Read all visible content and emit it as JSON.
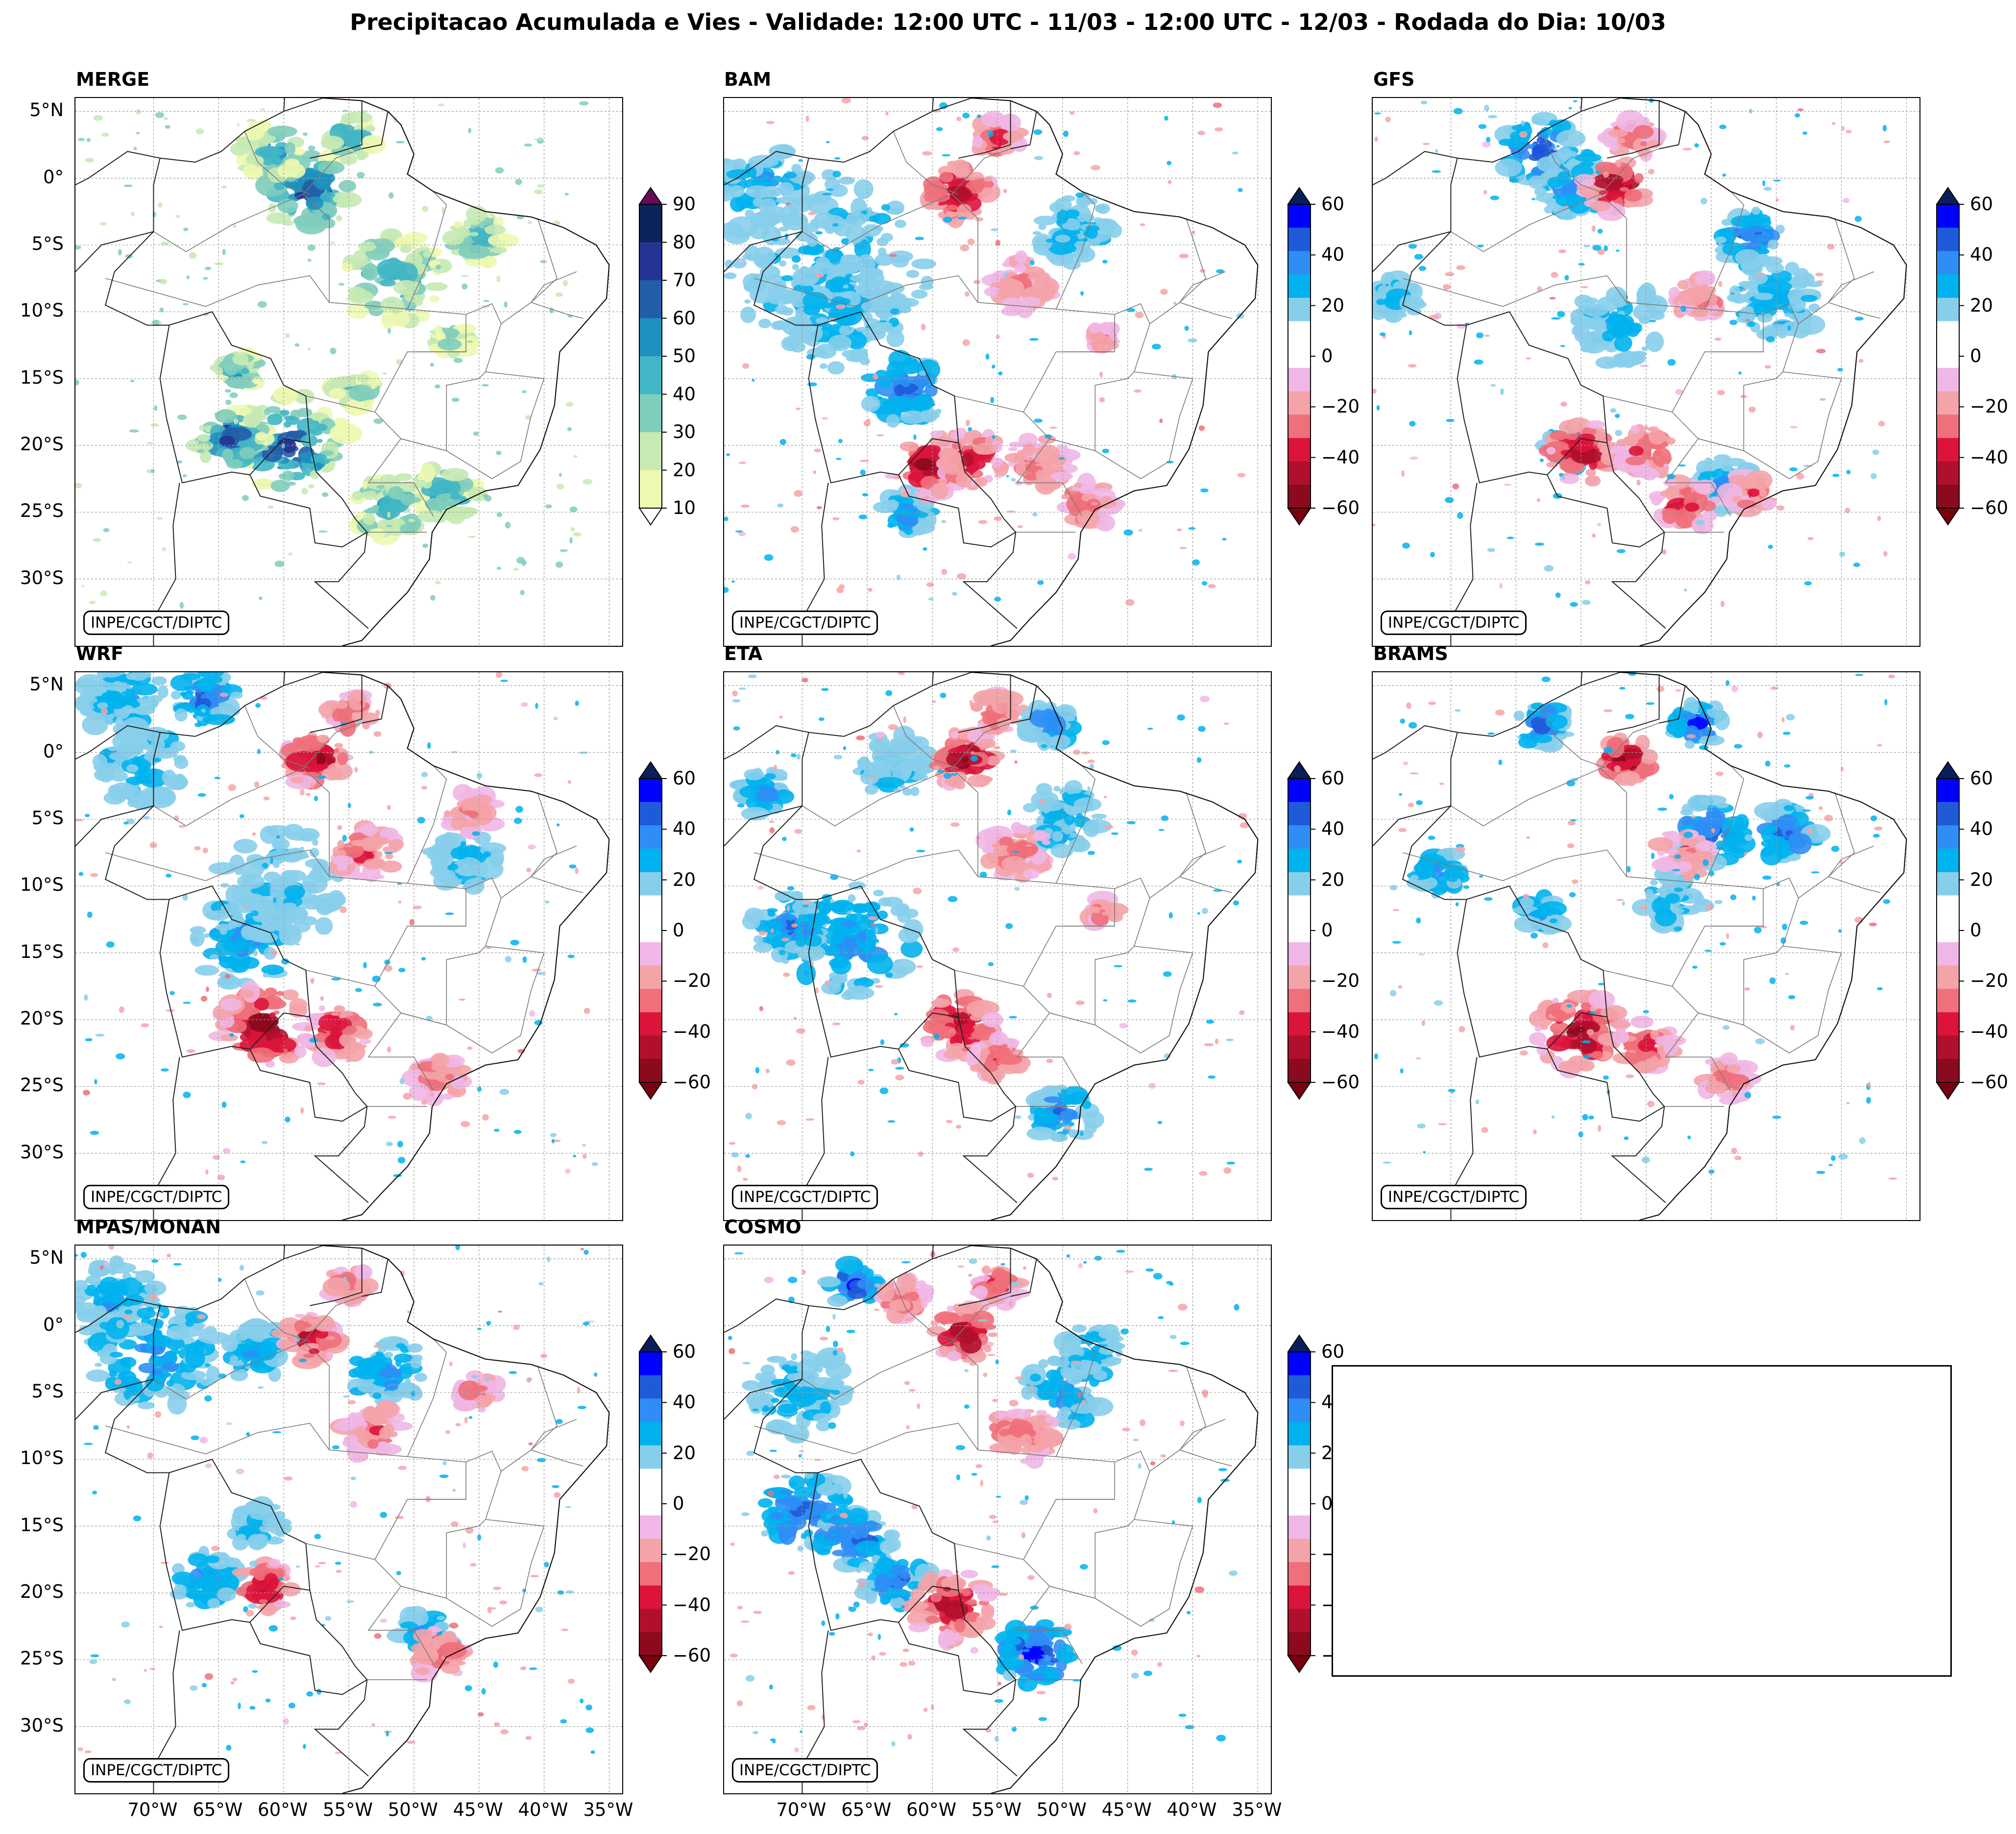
{
  "title": "Precipitacao Acumulada e Vies - Validade: 12:00 UTC - 11/03 - 12:00 UTC - 12/03 - Rodada do Dia: 10/03",
  "credit": "INPE/CGCT/DIPTC",
  "lat_labels": [
    "5°N",
    "0°",
    "5°S",
    "10°S",
    "15°S",
    "20°S",
    "25°S",
    "30°S"
  ],
  "lon_labels": [
    "70°W",
    "65°W",
    "60°W",
    "55°W",
    "50°W",
    "45°W",
    "40°W",
    "35°W"
  ],
  "colorbars": {
    "precip": {
      "ticks": [
        "90",
        "80",
        "70",
        "60",
        "50",
        "40",
        "30",
        "20",
        "10"
      ],
      "colors": [
        "#0c2459",
        "#253494",
        "#225ea8",
        "#1d91c0",
        "#41b6c4",
        "#7fcdbb",
        "#c7e9b4",
        "#edf8b1"
      ],
      "over": "#6a0a5a",
      "under": "#ffffff"
    },
    "bias": {
      "ticks": [
        "60",
        "40",
        "20",
        "0",
        "−20",
        "−40",
        "−60"
      ],
      "colors": [
        "#0000ff",
        "#1f5bd9",
        "#2e8ef5",
        "#00b2ee",
        "#87ceeb",
        "#ffffff",
        "#ffffff",
        "#f0b7e6",
        "#f4a3a8",
        "#ef6f7a",
        "#dc143c",
        "#b0102e",
        "#8b0a1e"
      ],
      "over": "#0a1f5a",
      "under": "#7a0010"
    }
  },
  "panels": [
    {
      "id": "merge",
      "title": "MERGE",
      "type": "precip"
    },
    {
      "id": "bam",
      "title": "BAM",
      "type": "bias"
    },
    {
      "id": "gfs",
      "title": "GFS",
      "type": "bias"
    },
    {
      "id": "wrf",
      "title": "WRF",
      "type": "bias"
    },
    {
      "id": "eta",
      "title": "ETA",
      "type": "bias"
    },
    {
      "id": "brams",
      "title": "BRAMS",
      "type": "bias"
    },
    {
      "id": "mpas",
      "title": "MPAS/MONAN",
      "type": "bias"
    },
    {
      "id": "cosmo",
      "title": "COSMO",
      "type": "bias"
    }
  ]
}
